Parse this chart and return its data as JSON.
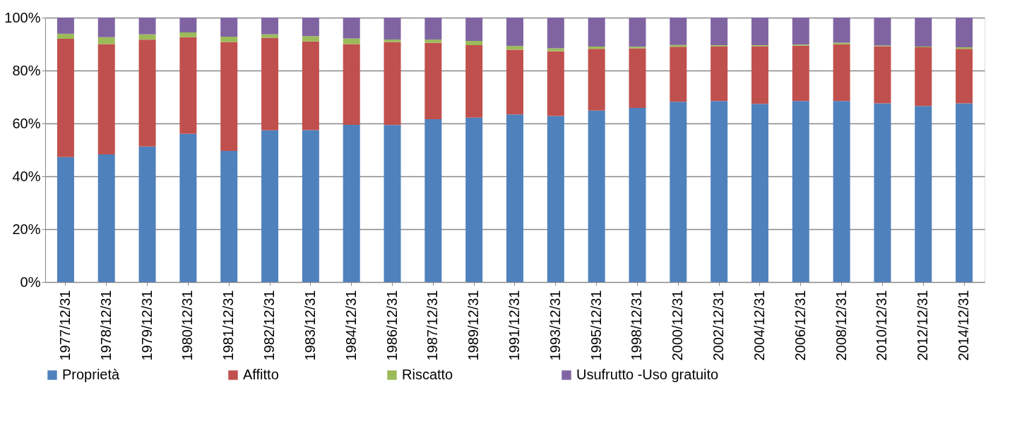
{
  "chart_data": {
    "type": "bar",
    "stacked": true,
    "categories": [
      "1977/12/31",
      "1978/12/31",
      "1979/12/31",
      "1980/12/31",
      "1981/12/31",
      "1982/12/31",
      "1983/12/31",
      "1984/12/31",
      "1986/12/31",
      "1987/12/31",
      "1989/12/31",
      "1991/12/31",
      "1993/12/31",
      "1995/12/31",
      "1998/12/31",
      "2000/12/31",
      "2002/12/31",
      "2004/12/31",
      "2006/12/31",
      "2008/12/31",
      "2010/12/31",
      "2012/12/31",
      "2014/12/31"
    ],
    "series": [
      {
        "name": "Proprietà",
        "color": "#4f81bd",
        "values": [
          47.3,
          48.3,
          51.3,
          56.1,
          49.6,
          57.4,
          57.5,
          59.5,
          59.4,
          61.6,
          62.2,
          63.4,
          62.8,
          64.9,
          65.9,
          68.2,
          68.5,
          67.4,
          68.5,
          68.5,
          67.6,
          66.6,
          67.6
        ]
      },
      {
        "name": "Affitto",
        "color": "#c0504d",
        "values": [
          44.7,
          41.7,
          40.4,
          36.5,
          41.2,
          35.0,
          33.5,
          30.5,
          31.4,
          28.9,
          27.4,
          24.5,
          24.5,
          23.3,
          22.5,
          20.8,
          20.7,
          21.8,
          20.9,
          21.4,
          21.6,
          22.2,
          20.6
        ]
      },
      {
        "name": "Riscatto",
        "color": "#9bbb59",
        "values": [
          1.9,
          2.6,
          2.0,
          1.8,
          2.0,
          1.3,
          2.0,
          2.1,
          0.9,
          1.2,
          1.6,
          1.4,
          1.1,
          0.9,
          0.6,
          0.7,
          0.4,
          0.4,
          0.4,
          0.6,
          0.3,
          0.3,
          0.6
        ]
      },
      {
        "name": "Usufrutto -Uso gratuito",
        "color": "#8064a2",
        "values": [
          6.1,
          7.4,
          6.3,
          5.6,
          7.2,
          6.3,
          7.0,
          7.9,
          8.3,
          8.3,
          8.8,
          10.7,
          11.6,
          10.9,
          11.0,
          10.3,
          10.4,
          10.4,
          10.2,
          9.5,
          10.5,
          10.9,
          11.2
        ]
      }
    ],
    "ylim": [
      0,
      100
    ],
    "yticks": [
      {
        "value": 0,
        "label": "0%"
      },
      {
        "value": 20,
        "label": "20%"
      },
      {
        "value": 40,
        "label": "40%"
      },
      {
        "value": 60,
        "label": "60%"
      },
      {
        "value": 80,
        "label": "80%"
      },
      {
        "value": 100,
        "label": "100%"
      }
    ],
    "grid": "y",
    "legend": "bottom"
  }
}
